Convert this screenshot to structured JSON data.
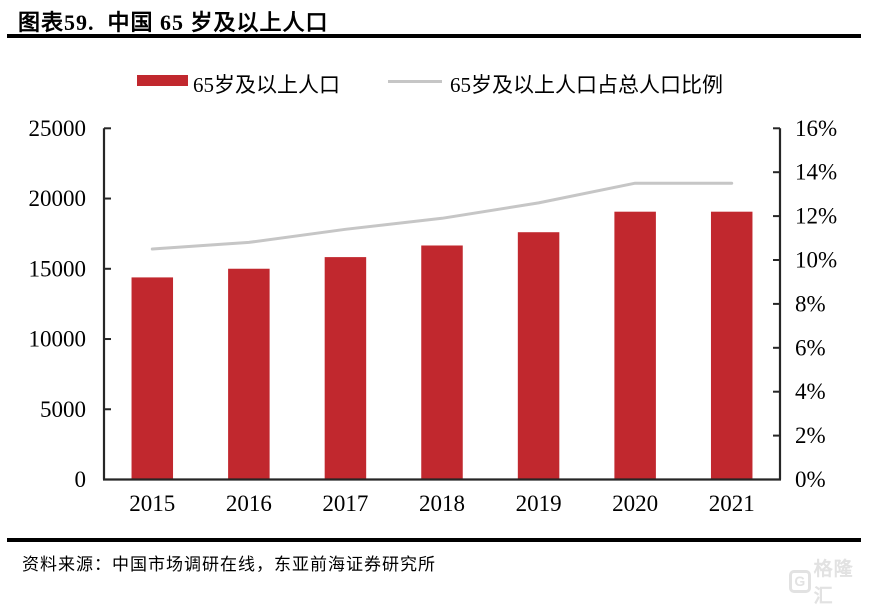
{
  "header": {
    "title": "图表59.  中国 65 岁及以上人口"
  },
  "legend": {
    "items": [
      {
        "label": "65岁及以上人口",
        "marker": "bar",
        "color": "#c1282e"
      },
      {
        "label": "65岁及以上人口占总人口比例",
        "marker": "line",
        "color": "#c6c6c6"
      }
    ]
  },
  "footer": {
    "source": "资料来源：中国市场调研在线，东亚前海证券研究所",
    "logo_text": "格隆汇"
  },
  "chart_data": {
    "type": "bar",
    "title": "图表59. 中国 65 岁及以上人口",
    "categories": [
      "2015",
      "2016",
      "2017",
      "2018",
      "2019",
      "2020",
      "2021"
    ],
    "series": [
      {
        "name": "65岁及以上人口",
        "type": "bar",
        "axis": "left",
        "color": "#c1282e",
        "values": [
          14386,
          15003,
          15831,
          16658,
          17603,
          19064,
          19064
        ]
      },
      {
        "name": "65岁及以上人口占总人口比例",
        "type": "line",
        "axis": "right",
        "color": "#c6c6c6",
        "values": [
          10.5,
          10.8,
          11.4,
          11.9,
          12.6,
          13.5,
          13.5
        ]
      }
    ],
    "left_axis": {
      "min": 0,
      "max": 25000,
      "step": 5000,
      "tick_labels": [
        "0",
        "5000",
        "10000",
        "15000",
        "20000",
        "25000"
      ]
    },
    "right_axis": {
      "min": 0,
      "max": 16,
      "step": 2,
      "tick_labels": [
        "0%",
        "2%",
        "4%",
        "6%",
        "8%",
        "10%",
        "12%",
        "14%",
        "16%"
      ]
    },
    "grid": false,
    "legend_position": "top",
    "axis_color": "#262626"
  }
}
